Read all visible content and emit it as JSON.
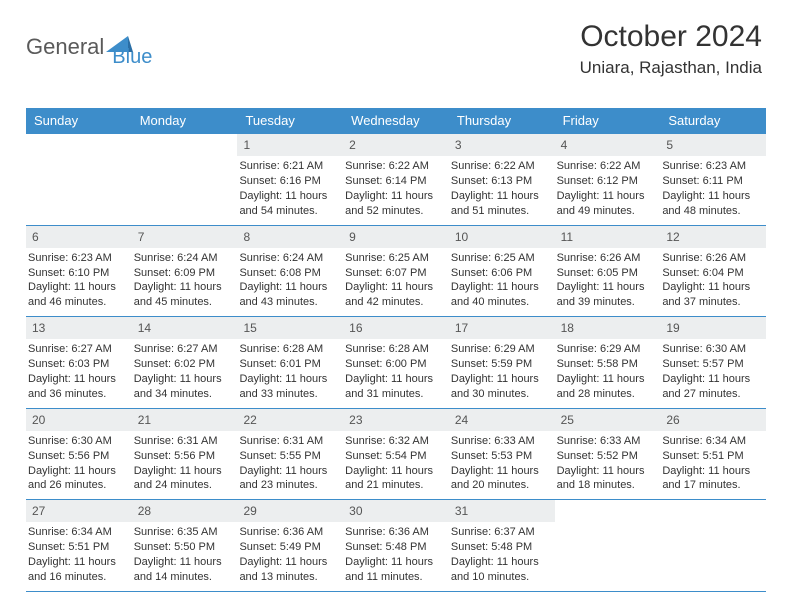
{
  "logo": {
    "text1": "General",
    "text2": "Blue",
    "color_text1": "#5a5a5a",
    "color_text2": "#3d8dca",
    "icon_color": "#3d8dca"
  },
  "header": {
    "title": "October 2024",
    "location": "Uniara, Rajasthan, India"
  },
  "styling": {
    "header_bg": "#3d8dca",
    "daynum_bg": "#eceeef",
    "border_color": "#3d8dca",
    "page_bg": "#ffffff",
    "font_family": "Arial, Helvetica, sans-serif",
    "title_fontsize": 30,
    "location_fontsize": 17,
    "weekday_fontsize": 13,
    "body_fontsize": 11
  },
  "weekdays": [
    "Sunday",
    "Monday",
    "Tuesday",
    "Wednesday",
    "Thursday",
    "Friday",
    "Saturday"
  ],
  "weeks": [
    [
      null,
      null,
      {
        "n": "1",
        "sr": "Sunrise: 6:21 AM",
        "ss": "Sunset: 6:16 PM",
        "dl": "Daylight: 11 hours and 54 minutes."
      },
      {
        "n": "2",
        "sr": "Sunrise: 6:22 AM",
        "ss": "Sunset: 6:14 PM",
        "dl": "Daylight: 11 hours and 52 minutes."
      },
      {
        "n": "3",
        "sr": "Sunrise: 6:22 AM",
        "ss": "Sunset: 6:13 PM",
        "dl": "Daylight: 11 hours and 51 minutes."
      },
      {
        "n": "4",
        "sr": "Sunrise: 6:22 AM",
        "ss": "Sunset: 6:12 PM",
        "dl": "Daylight: 11 hours and 49 minutes."
      },
      {
        "n": "5",
        "sr": "Sunrise: 6:23 AM",
        "ss": "Sunset: 6:11 PM",
        "dl": "Daylight: 11 hours and 48 minutes."
      }
    ],
    [
      {
        "n": "6",
        "sr": "Sunrise: 6:23 AM",
        "ss": "Sunset: 6:10 PM",
        "dl": "Daylight: 11 hours and 46 minutes."
      },
      {
        "n": "7",
        "sr": "Sunrise: 6:24 AM",
        "ss": "Sunset: 6:09 PM",
        "dl": "Daylight: 11 hours and 45 minutes."
      },
      {
        "n": "8",
        "sr": "Sunrise: 6:24 AM",
        "ss": "Sunset: 6:08 PM",
        "dl": "Daylight: 11 hours and 43 minutes."
      },
      {
        "n": "9",
        "sr": "Sunrise: 6:25 AM",
        "ss": "Sunset: 6:07 PM",
        "dl": "Daylight: 11 hours and 42 minutes."
      },
      {
        "n": "10",
        "sr": "Sunrise: 6:25 AM",
        "ss": "Sunset: 6:06 PM",
        "dl": "Daylight: 11 hours and 40 minutes."
      },
      {
        "n": "11",
        "sr": "Sunrise: 6:26 AM",
        "ss": "Sunset: 6:05 PM",
        "dl": "Daylight: 11 hours and 39 minutes."
      },
      {
        "n": "12",
        "sr": "Sunrise: 6:26 AM",
        "ss": "Sunset: 6:04 PM",
        "dl": "Daylight: 11 hours and 37 minutes."
      }
    ],
    [
      {
        "n": "13",
        "sr": "Sunrise: 6:27 AM",
        "ss": "Sunset: 6:03 PM",
        "dl": "Daylight: 11 hours and 36 minutes."
      },
      {
        "n": "14",
        "sr": "Sunrise: 6:27 AM",
        "ss": "Sunset: 6:02 PM",
        "dl": "Daylight: 11 hours and 34 minutes."
      },
      {
        "n": "15",
        "sr": "Sunrise: 6:28 AM",
        "ss": "Sunset: 6:01 PM",
        "dl": "Daylight: 11 hours and 33 minutes."
      },
      {
        "n": "16",
        "sr": "Sunrise: 6:28 AM",
        "ss": "Sunset: 6:00 PM",
        "dl": "Daylight: 11 hours and 31 minutes."
      },
      {
        "n": "17",
        "sr": "Sunrise: 6:29 AM",
        "ss": "Sunset: 5:59 PM",
        "dl": "Daylight: 11 hours and 30 minutes."
      },
      {
        "n": "18",
        "sr": "Sunrise: 6:29 AM",
        "ss": "Sunset: 5:58 PM",
        "dl": "Daylight: 11 hours and 28 minutes."
      },
      {
        "n": "19",
        "sr": "Sunrise: 6:30 AM",
        "ss": "Sunset: 5:57 PM",
        "dl": "Daylight: 11 hours and 27 minutes."
      }
    ],
    [
      {
        "n": "20",
        "sr": "Sunrise: 6:30 AM",
        "ss": "Sunset: 5:56 PM",
        "dl": "Daylight: 11 hours and 26 minutes."
      },
      {
        "n": "21",
        "sr": "Sunrise: 6:31 AM",
        "ss": "Sunset: 5:56 PM",
        "dl": "Daylight: 11 hours and 24 minutes."
      },
      {
        "n": "22",
        "sr": "Sunrise: 6:31 AM",
        "ss": "Sunset: 5:55 PM",
        "dl": "Daylight: 11 hours and 23 minutes."
      },
      {
        "n": "23",
        "sr": "Sunrise: 6:32 AM",
        "ss": "Sunset: 5:54 PM",
        "dl": "Daylight: 11 hours and 21 minutes."
      },
      {
        "n": "24",
        "sr": "Sunrise: 6:33 AM",
        "ss": "Sunset: 5:53 PM",
        "dl": "Daylight: 11 hours and 20 minutes."
      },
      {
        "n": "25",
        "sr": "Sunrise: 6:33 AM",
        "ss": "Sunset: 5:52 PM",
        "dl": "Daylight: 11 hours and 18 minutes."
      },
      {
        "n": "26",
        "sr": "Sunrise: 6:34 AM",
        "ss": "Sunset: 5:51 PM",
        "dl": "Daylight: 11 hours and 17 minutes."
      }
    ],
    [
      {
        "n": "27",
        "sr": "Sunrise: 6:34 AM",
        "ss": "Sunset: 5:51 PM",
        "dl": "Daylight: 11 hours and 16 minutes."
      },
      {
        "n": "28",
        "sr": "Sunrise: 6:35 AM",
        "ss": "Sunset: 5:50 PM",
        "dl": "Daylight: 11 hours and 14 minutes."
      },
      {
        "n": "29",
        "sr": "Sunrise: 6:36 AM",
        "ss": "Sunset: 5:49 PM",
        "dl": "Daylight: 11 hours and 13 minutes."
      },
      {
        "n": "30",
        "sr": "Sunrise: 6:36 AM",
        "ss": "Sunset: 5:48 PM",
        "dl": "Daylight: 11 hours and 11 minutes."
      },
      {
        "n": "31",
        "sr": "Sunrise: 6:37 AM",
        "ss": "Sunset: 5:48 PM",
        "dl": "Daylight: 11 hours and 10 minutes."
      },
      null,
      null
    ]
  ]
}
